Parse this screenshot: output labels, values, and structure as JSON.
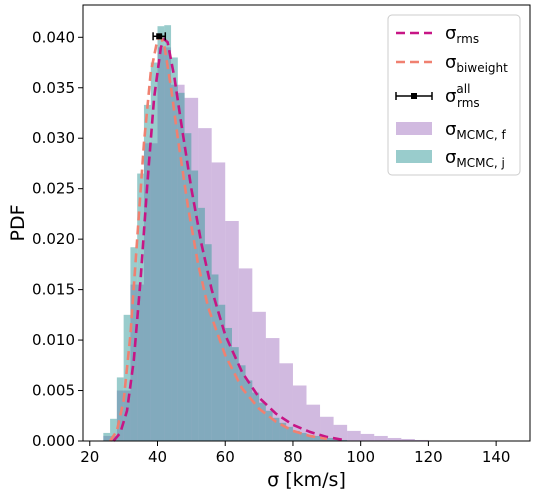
{
  "chart_data": {
    "type": "histogram",
    "xlabel": "σ [km/s]",
    "ylabel": "PDF",
    "xlim": [
      18,
      150
    ],
    "ylim": [
      0,
      0.0432
    ],
    "xticks": [
      20,
      40,
      60,
      80,
      100,
      120,
      140
    ],
    "yticks": [
      0.0,
      0.005,
      0.01,
      0.015,
      0.02,
      0.025,
      0.03,
      0.035,
      0.04
    ],
    "ytick_labels": [
      "0.000",
      "0.005",
      "0.010",
      "0.015",
      "0.020",
      "0.025",
      "0.030",
      "0.035",
      "0.040"
    ],
    "grid": false,
    "legend_position": "top-right",
    "colors": {
      "rms": "#c71585",
      "biweight": "#f08070",
      "mcmc_f": "#9966bb",
      "mcmc_j": "#339999",
      "all": "#000000"
    },
    "legend": [
      {
        "key": "rms",
        "kind": "dashed-line",
        "symbol": "σ",
        "sub": "rms",
        "sup": ""
      },
      {
        "key": "biweight",
        "kind": "dashed-line",
        "symbol": "σ",
        "sub": "biweight",
        "sup": ""
      },
      {
        "key": "all",
        "kind": "errorbar",
        "symbol": "σ",
        "sub": "rms",
        "sup": "all"
      },
      {
        "key": "mcmc_f",
        "kind": "patch",
        "symbol": "σ",
        "sub": "MCMC, f",
        "sup": ""
      },
      {
        "key": "mcmc_j",
        "kind": "patch",
        "symbol": "σ",
        "sub": "MCMC, j",
        "sup": ""
      }
    ],
    "hist_mcmc_f": {
      "name": "σMCMC,f",
      "bin_start": 24,
      "bin_width": 4,
      "values": [
        0.0005,
        0.005,
        0.0155,
        0.0295,
        0.039,
        0.0353,
        0.034,
        0.031,
        0.0276,
        0.0218,
        0.0171,
        0.0128,
        0.0102,
        0.0077,
        0.0055,
        0.0036,
        0.0024,
        0.0016,
        0.001,
        0.0007,
        0.0005,
        0.0003,
        0.0002,
        0.0001,
        5e-05,
        4e-05,
        3e-05,
        2e-05,
        1e-05,
        1e-05
      ]
    },
    "hist_mcmc_j": {
      "name": "σMCMC,j",
      "bin_start": 24,
      "bin_width": 2,
      "values": [
        0.0008,
        0.0022,
        0.0063,
        0.0125,
        0.0192,
        0.0265,
        0.0333,
        0.0375,
        0.0411,
        0.0412,
        0.038,
        0.0345,
        0.0305,
        0.0268,
        0.0231,
        0.0195,
        0.0165,
        0.0135,
        0.0112,
        0.0093,
        0.0075,
        0.006,
        0.0048,
        0.0038,
        0.003,
        0.0023,
        0.0018,
        0.0014,
        0.001,
        0.0008,
        0.0006,
        0.0005,
        0.0004,
        0.0003,
        0.0002,
        0.0001
      ]
    },
    "curve_rms": {
      "name": "σrms",
      "x": [
        27,
        29,
        31,
        33,
        35,
        37,
        39,
        41,
        42,
        43,
        45,
        47,
        50,
        53,
        56,
        60,
        65,
        70,
        75,
        80,
        85,
        90,
        95
      ],
      "y": [
        0.0,
        0.0008,
        0.003,
        0.008,
        0.016,
        0.0255,
        0.034,
        0.039,
        0.0398,
        0.0395,
        0.036,
        0.0315,
        0.025,
        0.0195,
        0.015,
        0.0105,
        0.0068,
        0.0043,
        0.0027,
        0.0016,
        0.0009,
        0.0004,
        0.0001
      ]
    },
    "curve_biweight": {
      "name": "σbiweight",
      "x": [
        26,
        28,
        30,
        32,
        34,
        36,
        38,
        40,
        41,
        42,
        44,
        46,
        49,
        52,
        55,
        60,
        65,
        70,
        75,
        80,
        85,
        90
      ],
      "y": [
        0.0,
        0.001,
        0.004,
        0.0105,
        0.02,
        0.0295,
        0.0365,
        0.0398,
        0.04,
        0.0392,
        0.035,
        0.03,
        0.0232,
        0.0175,
        0.0132,
        0.0085,
        0.0052,
        0.0032,
        0.0019,
        0.001,
        0.0005,
        0.0002
      ]
    },
    "point_all": {
      "name": "σrms all",
      "x": 40.5,
      "y": 0.0401,
      "xerr": 1.8
    }
  }
}
